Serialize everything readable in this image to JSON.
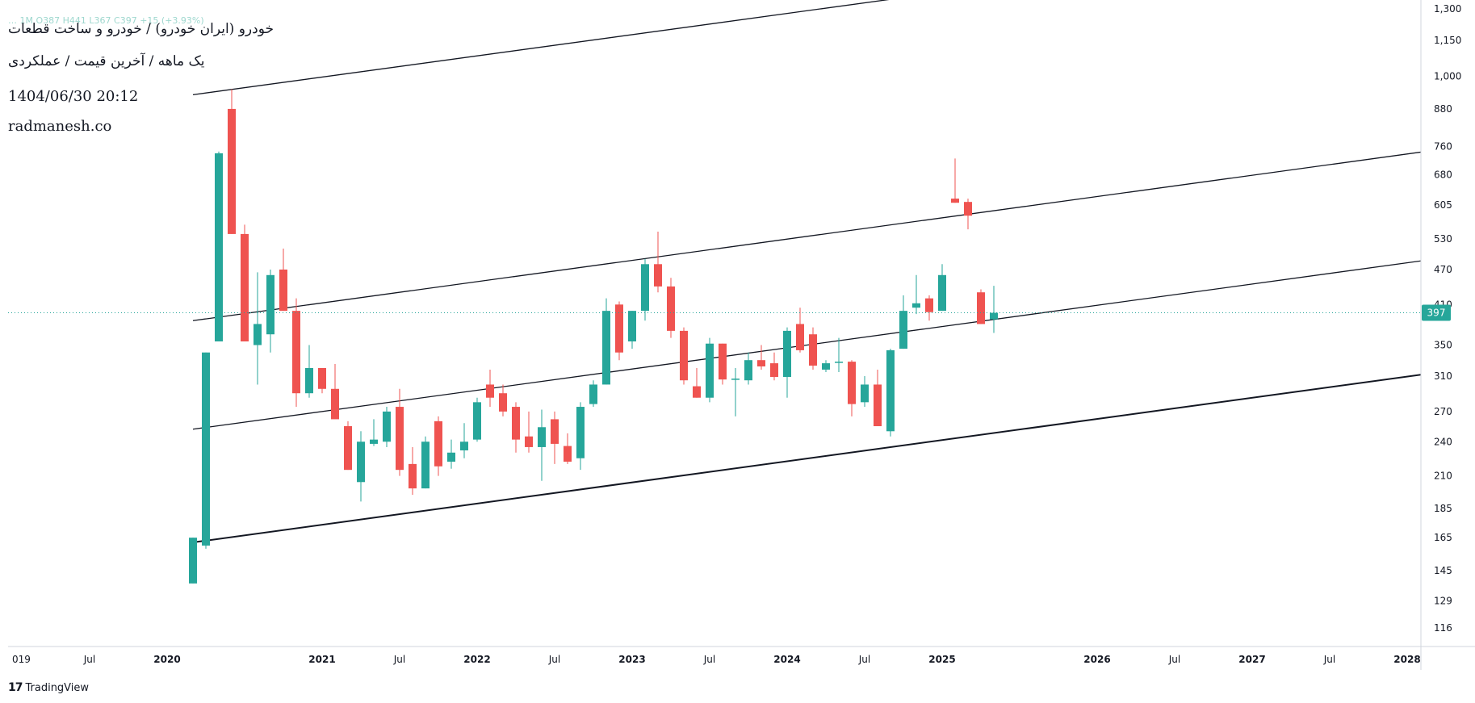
{
  "header": {
    "ohlc_text": "… 1M O387 H441 L367 C397 +15 (+3.93%)",
    "title_line1": "خودرو (ایران خودرو) / خودرو و ساخت قطعات",
    "title_line2": "یک ماهه / آخرین قیمت / عملکردی",
    "datetime": "1404/06/30 20:12",
    "website": "radmanesh.co"
  },
  "footer": {
    "brand": "TradingView",
    "logo_icon": "tradingview-logo-icon"
  },
  "colors": {
    "up": "#26a69a",
    "down": "#ef5350",
    "line": "#131722",
    "axis_text": "#131722",
    "price_tag": "#26a69a"
  },
  "chart_data": {
    "type": "candlestick",
    "interval": "1M",
    "y_scale": "log",
    "y_ticks": [
      116,
      129,
      145,
      165,
      185,
      210,
      240,
      270,
      310,
      350,
      410,
      470,
      530,
      605,
      680,
      760,
      880,
      1000,
      1150,
      1300
    ],
    "x_ticks": [
      "019",
      "Jul",
      "2020",
      "2021",
      "Jul",
      "2022",
      "Jul",
      "2023",
      "Jul",
      "2024",
      "Jul",
      "2025",
      "2026",
      "Jul",
      "2027",
      "Jul",
      "2028"
    ],
    "x_tick_months": [
      -6,
      0,
      6,
      18,
      24,
      30,
      36,
      42,
      48,
      54,
      60,
      66,
      78,
      84,
      90,
      96,
      102
    ],
    "last_price": 397,
    "last_price_label": "397",
    "candles": [
      {
        "t": 8,
        "o": 138,
        "h": 165,
        "l": 138,
        "c": 165
      },
      {
        "t": 9,
        "o": 160,
        "h": 340,
        "l": 158,
        "c": 340
      },
      {
        "t": 10,
        "o": 355,
        "h": 745,
        "l": 355,
        "c": 740
      },
      {
        "t": 11,
        "o": 880,
        "h": 950,
        "l": 540,
        "c": 540
      },
      {
        "t": 12,
        "o": 540,
        "h": 560,
        "l": 355,
        "c": 355
      },
      {
        "t": 13,
        "o": 350,
        "h": 465,
        "l": 300,
        "c": 380
      },
      {
        "t": 14,
        "o": 365,
        "h": 470,
        "l": 340,
        "c": 460
      },
      {
        "t": 15,
        "o": 470,
        "h": 510,
        "l": 400,
        "c": 400
      },
      {
        "t": 16,
        "o": 400,
        "h": 420,
        "l": 275,
        "c": 290
      },
      {
        "t": 17,
        "o": 290,
        "h": 350,
        "l": 285,
        "c": 320
      },
      {
        "t": 18,
        "o": 320,
        "h": 320,
        "l": 290,
        "c": 295
      },
      {
        "t": 19,
        "o": 295,
        "h": 325,
        "l": 265,
        "c": 262
      },
      {
        "t": 20,
        "o": 255,
        "h": 260,
        "l": 215,
        "c": 215
      },
      {
        "t": 21,
        "o": 205,
        "h": 250,
        "l": 190,
        "c": 240
      },
      {
        "t": 22,
        "o": 238,
        "h": 262,
        "l": 236,
        "c": 242
      },
      {
        "t": 23,
        "o": 240,
        "h": 275,
        "l": 235,
        "c": 270
      },
      {
        "t": 24,
        "o": 275,
        "h": 295,
        "l": 210,
        "c": 215
      },
      {
        "t": 25,
        "o": 220,
        "h": 235,
        "l": 195,
        "c": 200
      },
      {
        "t": 26,
        "o": 200,
        "h": 245,
        "l": 200,
        "c": 240
      },
      {
        "t": 27,
        "o": 260,
        "h": 265,
        "l": 210,
        "c": 218
      },
      {
        "t": 28,
        "o": 222,
        "h": 242,
        "l": 216,
        "c": 230
      },
      {
        "t": 29,
        "o": 232,
        "h": 258,
        "l": 225,
        "c": 240
      },
      {
        "t": 30,
        "o": 242,
        "h": 285,
        "l": 240,
        "c": 280
      },
      {
        "t": 31,
        "o": 300,
        "h": 318,
        "l": 275,
        "c": 285
      },
      {
        "t": 32,
        "o": 290,
        "h": 300,
        "l": 265,
        "c": 270
      },
      {
        "t": 33,
        "o": 275,
        "h": 280,
        "l": 230,
        "c": 242
      },
      {
        "t": 34,
        "o": 245,
        "h": 270,
        "l": 230,
        "c": 235
      },
      {
        "t": 35,
        "o": 235,
        "h": 272,
        "l": 206,
        "c": 254
      },
      {
        "t": 36,
        "o": 262,
        "h": 270,
        "l": 220,
        "c": 238
      },
      {
        "t": 37,
        "o": 236,
        "h": 248,
        "l": 220,
        "c": 222
      },
      {
        "t": 38,
        "o": 225,
        "h": 280,
        "l": 215,
        "c": 275
      },
      {
        "t": 39,
        "o": 278,
        "h": 305,
        "l": 275,
        "c": 300
      },
      {
        "t": 40,
        "o": 300,
        "h": 420,
        "l": 300,
        "c": 400
      },
      {
        "t": 41,
        "o": 410,
        "h": 415,
        "l": 330,
        "c": 340
      },
      {
        "t": 42,
        "o": 355,
        "h": 400,
        "l": 345,
        "c": 400
      },
      {
        "t": 43,
        "o": 400,
        "h": 490,
        "l": 385,
        "c": 480
      },
      {
        "t": 44,
        "o": 480,
        "h": 545,
        "l": 430,
        "c": 440
      },
      {
        "t": 45,
        "o": 440,
        "h": 455,
        "l": 360,
        "c": 370
      },
      {
        "t": 46,
        "o": 370,
        "h": 375,
        "l": 300,
        "c": 305
      },
      {
        "t": 47,
        "o": 298,
        "h": 320,
        "l": 285,
        "c": 285
      },
      {
        "t": 48,
        "o": 285,
        "h": 360,
        "l": 280,
        "c": 352
      },
      {
        "t": 49,
        "o": 352,
        "h": 352,
        "l": 300,
        "c": 306
      },
      {
        "t": 50,
        "o": 306,
        "h": 320,
        "l": 265,
        "c": 307
      },
      {
        "t": 51,
        "o": 305,
        "h": 340,
        "l": 300,
        "c": 330
      },
      {
        "t": 52,
        "o": 330,
        "h": 350,
        "l": 318,
        "c": 322
      },
      {
        "t": 53,
        "o": 326,
        "h": 340,
        "l": 305,
        "c": 309
      },
      {
        "t": 54,
        "o": 309,
        "h": 375,
        "l": 285,
        "c": 370
      },
      {
        "t": 55,
        "o": 380,
        "h": 405,
        "l": 340,
        "c": 343
      },
      {
        "t": 56,
        "o": 365,
        "h": 375,
        "l": 318,
        "c": 323
      },
      {
        "t": 57,
        "o": 318,
        "h": 330,
        "l": 315,
        "c": 326
      },
      {
        "t": 58,
        "o": 328,
        "h": 360,
        "l": 315,
        "c": 328
      },
      {
        "t": 59,
        "o": 328,
        "h": 330,
        "l": 265,
        "c": 278
      },
      {
        "t": 60,
        "o": 280,
        "h": 310,
        "l": 275,
        "c": 300
      },
      {
        "t": 61,
        "o": 300,
        "h": 318,
        "l": 255,
        "c": 255
      },
      {
        "t": 62,
        "o": 250,
        "h": 345,
        "l": 245,
        "c": 343
      },
      {
        "t": 63,
        "o": 345,
        "h": 425,
        "l": 345,
        "c": 400
      },
      {
        "t": 64,
        "o": 405,
        "h": 460,
        "l": 395,
        "c": 412
      },
      {
        "t": 65,
        "o": 420,
        "h": 425,
        "l": 385,
        "c": 398
      },
      {
        "t": 66,
        "o": 400,
        "h": 480,
        "l": 400,
        "c": 460
      },
      {
        "t": 67,
        "o": 620,
        "h": 725,
        "l": 610,
        "c": 610
      },
      {
        "t": 68,
        "o": 612,
        "h": 620,
        "l": 550,
        "c": 580
      },
      {
        "t": 69,
        "o": 430,
        "h": 435,
        "l": 380,
        "c": 380
      },
      {
        "t": 70,
        "o": 387,
        "h": 441,
        "l": 367,
        "c": 397
      }
    ],
    "trendlines": [
      {
        "x1": 8,
        "y1": 162,
        "x2": 110,
        "y2": 327
      },
      {
        "x1": 8,
        "y1": 252,
        "x2": 110,
        "y2": 510
      },
      {
        "x1": 8,
        "y1": 385,
        "x2": 110,
        "y2": 780
      },
      {
        "x1": 8,
        "y1": 930,
        "x2": 110,
        "y2": 1880
      }
    ]
  }
}
